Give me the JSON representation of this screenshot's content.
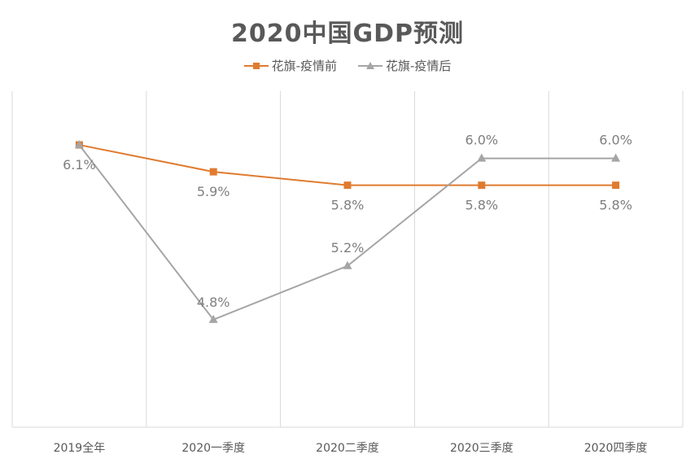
{
  "chart_data": {
    "type": "line",
    "title": "2020中国GDP预测",
    "categories": [
      "2019全年",
      "2020一季度",
      "2020二季度",
      "2020三季度",
      "2020四季度"
    ],
    "series": [
      {
        "name": "花旗-疫情前",
        "color": "#E07B2F",
        "marker": "square",
        "values": [
          6.1,
          5.9,
          5.8,
          5.8,
          5.8
        ],
        "labels": [
          "6.1%",
          "5.9%",
          "5.8%",
          "5.8%",
          "5.8%"
        ]
      },
      {
        "name": "花旗-疫情后",
        "color": "#A5A5A5",
        "marker": "triangle",
        "values": [
          6.1,
          4.8,
          5.2,
          6.0,
          6.0
        ],
        "labels": [
          "",
          "4.8%",
          "5.2%",
          "6.0%",
          "6.0%"
        ]
      }
    ],
    "ylim": [
      4.0,
      6.5
    ],
    "grid": "vertical",
    "legend_position": "top"
  }
}
